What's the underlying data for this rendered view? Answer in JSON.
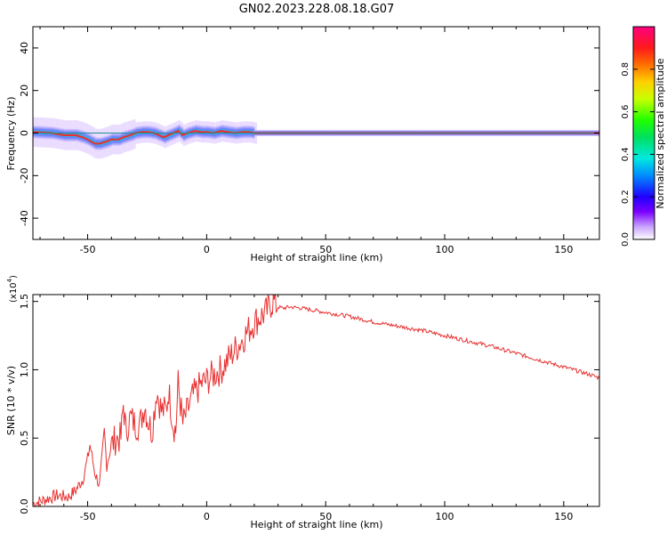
{
  "title": "GN02.2023.228.08.18.G07",
  "colors": {
    "snr_line": "#e83030",
    "spectrogram_peak": "#e83030",
    "reference_line": "#1f8f8f",
    "axis": "#000000"
  },
  "colorbar": {
    "label": "Normalized spectral amplitude",
    "ticks": [
      "0.0",
      "0.2",
      "0.4",
      "0.6",
      "0.8"
    ],
    "tick_values": [
      0.0,
      0.2,
      0.4,
      0.6,
      0.8
    ],
    "range": [
      0,
      1
    ],
    "colormap": "rainbow: white-violet-blue-cyan-green-yellow-orange-red-magenta"
  },
  "chart_data": [
    {
      "type": "heatmap",
      "xlabel": "Height of straight line (km)",
      "ylabel": "Frequency (Hz)",
      "xlim": [
        -73,
        165
      ],
      "ylim": [
        -50,
        50
      ],
      "x_ticks": [
        "-50",
        "0",
        "50",
        "100",
        "150"
      ],
      "x_tick_values": [
        -50,
        0,
        50,
        100,
        150
      ],
      "y_ticks": [
        "-40",
        "-20",
        "0",
        "20",
        "40"
      ],
      "y_tick_values": [
        -40,
        -20,
        0,
        20,
        40
      ],
      "grid": false,
      "reference_frequency": 0,
      "ridge": {
        "x": [
          -73,
          -65,
          -60,
          -55,
          -52,
          -50,
          -47,
          -45,
          -42,
          -40,
          -37,
          -35,
          -32,
          -30,
          -27,
          -25,
          -22,
          -20,
          -18,
          -16,
          -14,
          -12,
          -10,
          -8,
          -5,
          -2,
          0,
          3,
          6,
          9,
          12,
          15,
          18,
          20,
          30,
          50,
          80,
          110,
          140,
          165
        ],
        "y": [
          0.5,
          0,
          -1,
          -1,
          -2,
          -3,
          -5,
          -5,
          -4,
          -3,
          -3,
          -2,
          -1,
          0,
          0.5,
          0.5,
          0,
          -1,
          -2,
          -1,
          0,
          1,
          -1,
          0,
          1,
          0.5,
          0.5,
          0,
          1,
          0.5,
          0,
          0.5,
          0.5,
          0,
          0,
          0,
          0,
          0,
          0,
          0
        ]
      }
    },
    {
      "type": "line",
      "xlabel": "Height of straight line (km)",
      "ylabel": "SNR (10 * v/v)",
      "yscale_label": "(x10",
      "yscale_exp": "4",
      "yscale_suffix": ")",
      "xlim": [
        -73,
        165
      ],
      "ylim": [
        0,
        1.55
      ],
      "x_ticks": [
        "-50",
        "0",
        "50",
        "100",
        "150"
      ],
      "x_tick_values": [
        -50,
        0,
        50,
        100,
        150
      ],
      "y_ticks": [
        "0.0",
        "0.5",
        "1.0",
        "1.5"
      ],
      "y_tick_values": [
        0.0,
        0.5,
        1.0,
        1.5
      ],
      "grid": false,
      "series": [
        {
          "x": [
            -73,
            -68,
            -63,
            -58,
            -55,
            -52,
            -50,
            -49,
            -47,
            -45,
            -43,
            -42,
            -40,
            -38,
            -36,
            -35,
            -34,
            -32,
            -30,
            -28,
            -26,
            -25,
            -23,
            -21,
            -19,
            -17,
            -16,
            -14,
            -13,
            -12,
            -11,
            -10,
            -8,
            -6,
            -4,
            -2,
            0,
            2,
            4,
            6,
            8,
            10,
            12,
            14,
            16,
            18,
            20,
            22,
            25,
            27,
            28,
            30,
            32,
            35,
            40,
            50,
            60,
            70,
            80,
            90,
            100,
            110,
            120,
            130,
            140,
            150,
            160,
            165
          ],
          "y": [
            0.02,
            0.05,
            0.08,
            0.07,
            0.12,
            0.2,
            0.35,
            0.45,
            0.25,
            0.15,
            0.55,
            0.3,
            0.45,
            0.5,
            0.5,
            0.75,
            0.55,
            0.65,
            0.6,
            0.6,
            0.75,
            0.65,
            0.55,
            0.85,
            0.7,
            0.7,
            0.85,
            0.6,
            0.55,
            0.9,
            0.75,
            0.6,
            0.7,
            0.8,
            0.85,
            0.9,
            0.92,
            0.95,
            0.98,
            1.0,
            1.05,
            1.1,
            1.15,
            1.2,
            1.25,
            1.3,
            1.35,
            1.38,
            1.42,
            1.48,
            1.5,
            1.46,
            1.45,
            1.46,
            1.45,
            1.42,
            1.39,
            1.35,
            1.32,
            1.29,
            1.25,
            1.21,
            1.17,
            1.12,
            1.07,
            1.02,
            0.97,
            0.94
          ]
        }
      ]
    }
  ]
}
